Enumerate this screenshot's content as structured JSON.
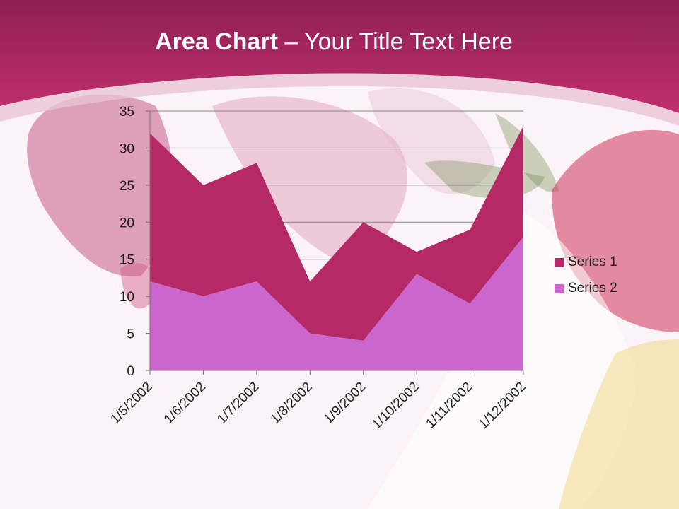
{
  "slide": {
    "title_bold": "Area Chart",
    "title_rest": " – Your Title Text Here"
  },
  "colors": {
    "header": "#a8255e",
    "series1": "#b52a66",
    "series2": "#cc66cc"
  },
  "chart_data": {
    "type": "area",
    "stacked": true,
    "categories": [
      "1/5/2002",
      "1/6/2002",
      "1/7/2002",
      "1/8/2002",
      "1/9/2002",
      "1/10/2002",
      "1/11/2002",
      "1/12/2002"
    ],
    "series": [
      {
        "name": "Series 1",
        "values": [
          20,
          15,
          16,
          7,
          16,
          3,
          10,
          15
        ]
      },
      {
        "name": "Series 2",
        "values": [
          12,
          10,
          12,
          5,
          4,
          13,
          9,
          18
        ]
      }
    ],
    "yticks": [
      0,
      5,
      10,
      15,
      20,
      25,
      30,
      35
    ],
    "ylim": [
      0,
      35
    ],
    "grid": true,
    "legend": "right"
  }
}
